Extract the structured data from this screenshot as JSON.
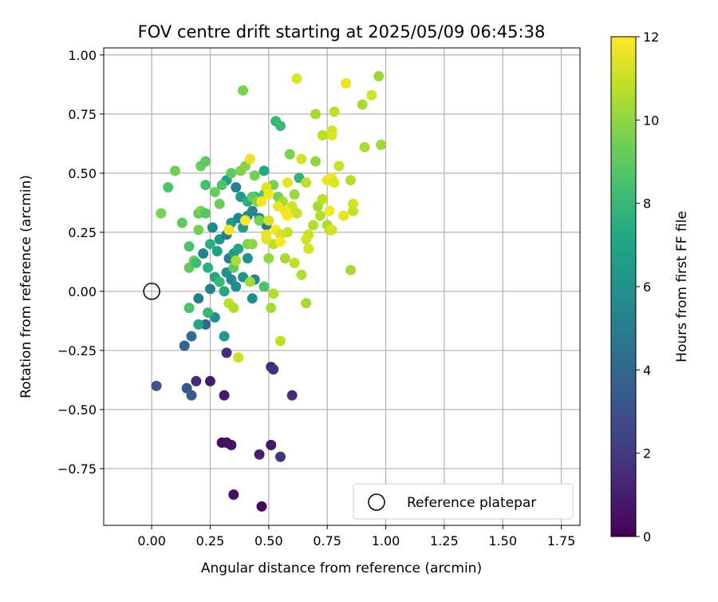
{
  "chart_data": {
    "type": "scatter",
    "title": "FOV centre drift starting at 2025/05/09 06:45:38",
    "xlabel": "Angular distance from reference (arcmin)",
    "ylabel": "Rotation from reference (arcmin)",
    "xlim": [
      -0.205,
      1.83
    ],
    "ylim": [
      -0.99,
      1.03
    ],
    "xticks": [
      "0.00",
      "0.25",
      "0.50",
      "0.75",
      "1.00",
      "1.25",
      "1.50",
      "1.75"
    ],
    "xtick_values": [
      0,
      0.25,
      0.5,
      0.75,
      1.0,
      1.25,
      1.5,
      1.75
    ],
    "yticks": [
      "1.00",
      "0.75",
      "0.50",
      "0.25",
      "0.00",
      "−0.25",
      "−0.50",
      "−0.75"
    ],
    "ytick_values": [
      1.0,
      0.75,
      0.5,
      0.25,
      0.0,
      -0.25,
      -0.5,
      -0.75
    ],
    "grid": true,
    "colormap": "viridis",
    "colorbar": {
      "label": "Hours from first FF file",
      "range": [
        0,
        12
      ],
      "ticks": [
        "0",
        "2",
        "4",
        "6",
        "8",
        "10",
        "12"
      ],
      "tick_values": [
        0,
        2,
        4,
        6,
        8,
        10,
        12
      ]
    },
    "legend": {
      "position": "bottom-right",
      "entries": [
        "Reference platepar"
      ]
    },
    "reference_point": {
      "x": 0.0,
      "y": 0.0
    },
    "points": [
      {
        "x": 0.47,
        "y": -0.91,
        "c": 0.3
      },
      {
        "x": 0.35,
        "y": -0.86,
        "c": 0.6
      },
      {
        "x": 0.3,
        "y": -0.64,
        "c": 0.4
      },
      {
        "x": 0.32,
        "y": -0.64,
        "c": 0.5
      },
      {
        "x": 0.34,
        "y": -0.65,
        "c": 0.6
      },
      {
        "x": 0.51,
        "y": -0.65,
        "c": 0.8
      },
      {
        "x": 0.46,
        "y": -0.69,
        "c": 1.0
      },
      {
        "x": 0.55,
        "y": -0.7,
        "c": 1.8
      },
      {
        "x": 0.31,
        "y": -0.44,
        "c": 0.8
      },
      {
        "x": 0.25,
        "y": -0.38,
        "c": 0.9
      },
      {
        "x": 0.19,
        "y": -0.38,
        "c": 1.5
      },
      {
        "x": 0.32,
        "y": -0.26,
        "c": 1.5
      },
      {
        "x": 0.51,
        "y": -0.32,
        "c": 1.4
      },
      {
        "x": 0.52,
        "y": -0.33,
        "c": 1.6
      },
      {
        "x": 0.6,
        "y": -0.44,
        "c": 1.5
      },
      {
        "x": 0.02,
        "y": -0.4,
        "c": 3.0
      },
      {
        "x": 0.15,
        "y": -0.41,
        "c": 3.2
      },
      {
        "x": 0.17,
        "y": -0.44,
        "c": 3.4
      },
      {
        "x": 0.14,
        "y": -0.23,
        "c": 3.8
      },
      {
        "x": 0.17,
        "y": -0.19,
        "c": 4.2
      },
      {
        "x": 0.23,
        "y": -0.14,
        "c": 4.0
      },
      {
        "x": 0.2,
        "y": -0.03,
        "c": 5.0
      },
      {
        "x": 0.25,
        "y": 0.01,
        "c": 5.2
      },
      {
        "x": 0.27,
        "y": -0.11,
        "c": 6.0
      },
      {
        "x": 0.31,
        "y": -0.19,
        "c": 6.5
      },
      {
        "x": 0.2,
        "y": -0.14,
        "c": 7.0
      },
      {
        "x": 0.24,
        "y": -0.09,
        "c": 8.0
      },
      {
        "x": 0.16,
        "y": -0.07,
        "c": 8.5
      },
      {
        "x": 0.24,
        "y": 0.1,
        "c": 7.5
      },
      {
        "x": 0.32,
        "y": 0.08,
        "c": 6.0
      },
      {
        "x": 0.34,
        "y": 0.05,
        "c": 5.5
      },
      {
        "x": 0.36,
        "y": 0.02,
        "c": 5.8
      },
      {
        "x": 0.39,
        "y": 0.06,
        "c": 6.2
      },
      {
        "x": 0.27,
        "y": 0.06,
        "c": 7.0
      },
      {
        "x": 0.29,
        "y": 0.04,
        "c": 8.0
      },
      {
        "x": 0.31,
        "y": 0.0,
        "c": 7.2
      },
      {
        "x": 0.33,
        "y": 0.14,
        "c": 5.0
      },
      {
        "x": 0.35,
        "y": 0.16,
        "c": 6.5
      },
      {
        "x": 0.37,
        "y": 0.18,
        "c": 7.0
      },
      {
        "x": 0.41,
        "y": 0.14,
        "c": 6.0
      },
      {
        "x": 0.44,
        "y": 0.05,
        "c": 5.5
      },
      {
        "x": 0.43,
        "y": -0.03,
        "c": 5.8
      },
      {
        "x": 0.48,
        "y": 0.02,
        "c": 8.5
      },
      {
        "x": 0.35,
        "y": 0.1,
        "c": 9.0
      },
      {
        "x": 0.28,
        "y": 0.17,
        "c": 6.8
      },
      {
        "x": 0.25,
        "y": 0.2,
        "c": 7.6
      },
      {
        "x": 0.22,
        "y": 0.16,
        "c": 5.2
      },
      {
        "x": 0.26,
        "y": 0.27,
        "c": 5.6
      },
      {
        "x": 0.29,
        "y": 0.22,
        "c": 6.2
      },
      {
        "x": 0.32,
        "y": 0.24,
        "c": 5.0
      },
      {
        "x": 0.34,
        "y": 0.29,
        "c": 6.4
      },
      {
        "x": 0.37,
        "y": 0.31,
        "c": 5.4
      },
      {
        "x": 0.39,
        "y": 0.27,
        "c": 6.6
      },
      {
        "x": 0.41,
        "y": 0.32,
        "c": 5.8
      },
      {
        "x": 0.43,
        "y": 0.34,
        "c": 5.4
      },
      {
        "x": 0.46,
        "y": 0.31,
        "c": 5.2
      },
      {
        "x": 0.49,
        "y": 0.28,
        "c": 4.8
      },
      {
        "x": 0.36,
        "y": 0.44,
        "c": 5.2
      },
      {
        "x": 0.38,
        "y": 0.4,
        "c": 6.5
      },
      {
        "x": 0.41,
        "y": 0.38,
        "c": 7.5
      },
      {
        "x": 0.44,
        "y": 0.4,
        "c": 7.2
      },
      {
        "x": 0.48,
        "y": 0.41,
        "c": 8.5
      },
      {
        "x": 0.48,
        "y": 0.51,
        "c": 7.2
      },
      {
        "x": 0.32,
        "y": 0.47,
        "c": 6.8
      },
      {
        "x": 0.3,
        "y": 0.45,
        "c": 8.6
      },
      {
        "x": 0.27,
        "y": 0.42,
        "c": 9.2
      },
      {
        "x": 0.23,
        "y": 0.45,
        "c": 8.4
      },
      {
        "x": 0.21,
        "y": 0.53,
        "c": 9.2
      },
      {
        "x": 0.23,
        "y": 0.55,
        "c": 9.0
      },
      {
        "x": 0.1,
        "y": 0.51,
        "c": 9.4
      },
      {
        "x": 0.07,
        "y": 0.44,
        "c": 8.6
      },
      {
        "x": 0.04,
        "y": 0.33,
        "c": 9.6
      },
      {
        "x": 0.13,
        "y": 0.29,
        "c": 9.0
      },
      {
        "x": 0.2,
        "y": 0.33,
        "c": 9.0
      },
      {
        "x": 0.21,
        "y": 0.34,
        "c": 9.6
      },
      {
        "x": 0.23,
        "y": 0.33,
        "c": 8.8
      },
      {
        "x": 0.2,
        "y": 0.26,
        "c": 9.5
      },
      {
        "x": 0.16,
        "y": 0.19,
        "c": 8.5
      },
      {
        "x": 0.18,
        "y": 0.13,
        "c": 9.4
      },
      {
        "x": 0.16,
        "y": 0.1,
        "c": 9.0
      },
      {
        "x": 0.19,
        "y": 0.12,
        "c": 8.2
      },
      {
        "x": 0.29,
        "y": 0.37,
        "c": 9.3
      },
      {
        "x": 0.34,
        "y": 0.5,
        "c": 9.0
      },
      {
        "x": 0.38,
        "y": 0.51,
        "c": 9.6
      },
      {
        "x": 0.4,
        "y": 0.53,
        "c": 9.8
      },
      {
        "x": 0.39,
        "y": 0.85,
        "c": 9.6
      },
      {
        "x": 0.53,
        "y": 0.72,
        "c": 8.0
      },
      {
        "x": 0.55,
        "y": 0.7,
        "c": 8.2
      },
      {
        "x": 0.52,
        "y": 0.45,
        "c": 9.6
      },
      {
        "x": 0.54,
        "y": 0.4,
        "c": 9.4
      },
      {
        "x": 0.59,
        "y": 0.58,
        "c": 9.6
      },
      {
        "x": 0.63,
        "y": 0.48,
        "c": 7.8
      },
      {
        "x": 0.61,
        "y": 0.41,
        "c": 10.2
      },
      {
        "x": 0.56,
        "y": 0.38,
        "c": 10.4
      },
      {
        "x": 0.44,
        "y": 0.49,
        "c": 9.5
      },
      {
        "x": 0.43,
        "y": 0.4,
        "c": 9.0
      },
      {
        "x": 0.45,
        "y": 0.38,
        "c": 9.8
      },
      {
        "x": 0.46,
        "y": 0.3,
        "c": 9.5
      },
      {
        "x": 0.41,
        "y": 0.2,
        "c": 9.7
      },
      {
        "x": 0.43,
        "y": 0.2,
        "c": 9.9
      },
      {
        "x": 0.42,
        "y": 0.04,
        "c": 10.3
      },
      {
        "x": 0.36,
        "y": 0.13,
        "c": 10.5
      },
      {
        "x": 0.33,
        "y": -0.05,
        "c": 10.8
      },
      {
        "x": 0.35,
        "y": -0.07,
        "c": 10.6
      },
      {
        "x": 0.37,
        "y": -0.28,
        "c": 11.0
      },
      {
        "x": 0.51,
        "y": -0.07,
        "c": 10.4
      },
      {
        "x": 0.52,
        "y": -0.01,
        "c": 10.6
      },
      {
        "x": 0.55,
        "y": -0.21,
        "c": 10.8
      },
      {
        "x": 0.5,
        "y": 0.14,
        "c": 10.0
      },
      {
        "x": 0.52,
        "y": 0.2,
        "c": 10.8
      },
      {
        "x": 0.57,
        "y": 0.14,
        "c": 10.4
      },
      {
        "x": 0.61,
        "y": 0.12,
        "c": 10.8
      },
      {
        "x": 0.64,
        "y": 0.07,
        "c": 10.6
      },
      {
        "x": 0.66,
        "y": -0.05,
        "c": 10.4
      },
      {
        "x": 0.58,
        "y": 0.25,
        "c": 11.0
      },
      {
        "x": 0.59,
        "y": 0.34,
        "c": 10.8
      },
      {
        "x": 0.6,
        "y": 0.36,
        "c": 11.2
      },
      {
        "x": 0.62,
        "y": 0.33,
        "c": 11.0
      },
      {
        "x": 0.58,
        "y": 0.46,
        "c": 11.6
      },
      {
        "x": 0.64,
        "y": 0.56,
        "c": 11.2
      },
      {
        "x": 0.66,
        "y": 0.46,
        "c": 10.8
      },
      {
        "x": 0.7,
        "y": 0.55,
        "c": 10.0
      },
      {
        "x": 0.71,
        "y": 0.36,
        "c": 10.4
      },
      {
        "x": 0.73,
        "y": 0.39,
        "c": 10.8
      },
      {
        "x": 0.72,
        "y": 0.32,
        "c": 10.6
      },
      {
        "x": 0.75,
        "y": 0.28,
        "c": 10.4
      },
      {
        "x": 0.69,
        "y": 0.28,
        "c": 10.6
      },
      {
        "x": 0.67,
        "y": 0.24,
        "c": 11.0
      },
      {
        "x": 0.66,
        "y": 0.22,
        "c": 11.2
      },
      {
        "x": 0.67,
        "y": 0.18,
        "c": 11.2
      },
      {
        "x": 0.75,
        "y": 0.47,
        "c": 11.6
      },
      {
        "x": 0.77,
        "y": 0.48,
        "c": 11.8
      },
      {
        "x": 0.78,
        "y": 0.46,
        "c": 11.4
      },
      {
        "x": 0.8,
        "y": 0.53,
        "c": 11.0
      },
      {
        "x": 0.82,
        "y": 0.32,
        "c": 11.6
      },
      {
        "x": 0.85,
        "y": 0.09,
        "c": 10.4
      },
      {
        "x": 0.85,
        "y": 0.47,
        "c": 10.6
      },
      {
        "x": 0.86,
        "y": 0.34,
        "c": 11.0
      },
      {
        "x": 0.86,
        "y": 0.37,
        "c": 11.2
      },
      {
        "x": 0.76,
        "y": 0.26,
        "c": 10.8
      },
      {
        "x": 0.77,
        "y": 0.26,
        "c": 11.2
      },
      {
        "x": 0.76,
        "y": 0.34,
        "c": 11.8
      },
      {
        "x": 0.77,
        "y": 0.68,
        "c": 11.2
      },
      {
        "x": 0.78,
        "y": 0.76,
        "c": 10.8
      },
      {
        "x": 0.77,
        "y": 0.66,
        "c": 11.4
      },
      {
        "x": 0.73,
        "y": 0.66,
        "c": 10.8
      },
      {
        "x": 0.7,
        "y": 0.75,
        "c": 10.4
      },
      {
        "x": 0.62,
        "y": 0.9,
        "c": 11.4
      },
      {
        "x": 0.83,
        "y": 0.88,
        "c": 11.6
      },
      {
        "x": 0.9,
        "y": 0.79,
        "c": 10.4
      },
      {
        "x": 0.94,
        "y": 0.83,
        "c": 11.2
      },
      {
        "x": 0.97,
        "y": 0.91,
        "c": 10.2
      },
      {
        "x": 0.91,
        "y": 0.61,
        "c": 10.4
      },
      {
        "x": 0.98,
        "y": 0.62,
        "c": 10.2
      },
      {
        "x": 0.42,
        "y": 0.56,
        "c": 11.6
      },
      {
        "x": 0.49,
        "y": 0.44,
        "c": 11.4
      },
      {
        "x": 0.5,
        "y": 0.41,
        "c": 11.8
      },
      {
        "x": 0.5,
        "y": 0.3,
        "c": 11.2
      },
      {
        "x": 0.49,
        "y": 0.22,
        "c": 11.4
      },
      {
        "x": 0.49,
        "y": 0.24,
        "c": 11.6
      },
      {
        "x": 0.53,
        "y": 0.26,
        "c": 11.8
      },
      {
        "x": 0.55,
        "y": 0.24,
        "c": 11.2
      },
      {
        "x": 0.54,
        "y": 0.36,
        "c": 11.6
      },
      {
        "x": 0.58,
        "y": 0.32,
        "c": 11.8
      },
      {
        "x": 0.4,
        "y": 0.3,
        "c": 12.0
      },
      {
        "x": 0.33,
        "y": 0.26,
        "c": 11.9
      },
      {
        "x": 0.55,
        "y": 0.21,
        "c": 12.0
      },
      {
        "x": 0.47,
        "y": 0.38,
        "c": 11.9
      },
      {
        "x": 0.57,
        "y": 0.34,
        "c": 11.8
      }
    ]
  }
}
